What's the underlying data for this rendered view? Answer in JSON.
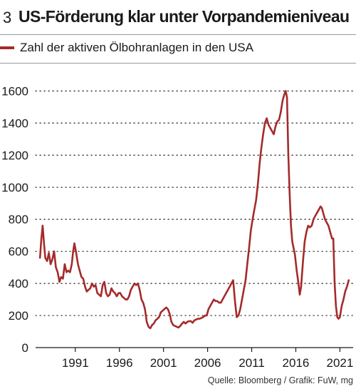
{
  "title": {
    "number": "3",
    "text": "US-Förderung klar unter Vorpandemieniveau"
  },
  "source": "Quelle: Bloomberg / Grafik: FuW, mg",
  "colors": {
    "series": "#a52a2a",
    "text": "#1a1a1a",
    "grid": "#1a1a1a"
  },
  "chart_data": {
    "type": "line",
    "title": "US-Förderung klar unter Vorpandemieniveau",
    "xlabel": "",
    "ylabel": "",
    "xlim": [
      1986.5,
      2022.5
    ],
    "ylim": [
      0,
      1700
    ],
    "x_ticks": [
      1991,
      1996,
      2001,
      2006,
      2011,
      2016,
      2021
    ],
    "y_ticks": [
      0,
      200,
      400,
      600,
      800,
      1000,
      1200,
      1400,
      1600
    ],
    "grid": "dotted horizontal",
    "legend": "top-left",
    "series": [
      {
        "name": "Zahl der aktiven Ölbohranlagen in den USA",
        "x": [
          1987.0,
          1987.15,
          1987.3,
          1987.45,
          1987.6,
          1987.8,
          1988.0,
          1988.2,
          1988.4,
          1988.6,
          1988.8,
          1989.0,
          1989.2,
          1989.4,
          1989.6,
          1989.8,
          1990.0,
          1990.2,
          1990.4,
          1990.6,
          1990.75,
          1990.9,
          1991.1,
          1991.3,
          1991.5,
          1991.7,
          1991.9,
          1992.1,
          1992.3,
          1992.5,
          1992.7,
          1992.9,
          1993.1,
          1993.3,
          1993.5,
          1993.7,
          1993.9,
          1994.1,
          1994.3,
          1994.5,
          1994.7,
          1994.9,
          1995.1,
          1995.3,
          1995.5,
          1995.7,
          1995.9,
          1996.1,
          1996.3,
          1996.5,
          1996.7,
          1996.9,
          1997.1,
          1997.3,
          1997.5,
          1997.7,
          1997.9,
          1998.1,
          1998.3,
          1998.5,
          1998.7,
          1998.9,
          1999.1,
          1999.3,
          1999.5,
          1999.7,
          1999.9,
          2000.1,
          2000.3,
          2000.5,
          2000.7,
          2000.9,
          2001.1,
          2001.3,
          2001.5,
          2001.7,
          2001.9,
          2002.1,
          2002.3,
          2002.5,
          2002.7,
          2002.9,
          2003.1,
          2003.3,
          2003.5,
          2003.7,
          2003.9,
          2004.1,
          2004.3,
          2004.5,
          2004.7,
          2004.9,
          2005.1,
          2005.3,
          2005.5,
          2005.7,
          2005.9,
          2006.1,
          2006.3,
          2006.5,
          2006.7,
          2006.9,
          2007.1,
          2007.3,
          2007.5,
          2007.7,
          2007.9,
          2008.1,
          2008.3,
          2008.5,
          2008.7,
          2008.9,
          2009.1,
          2009.3,
          2009.5,
          2009.7,
          2009.9,
          2010.1,
          2010.3,
          2010.5,
          2010.7,
          2010.9,
          2011.1,
          2011.3,
          2011.5,
          2011.7,
          2011.9,
          2012.1,
          2012.3,
          2012.5,
          2012.7,
          2012.9,
          2013.1,
          2013.3,
          2013.5,
          2013.7,
          2013.9,
          2014.1,
          2014.3,
          2014.5,
          2014.7,
          2014.85,
          2015.0,
          2015.15,
          2015.3,
          2015.45,
          2015.6,
          2015.75,
          2015.9,
          2016.1,
          2016.3,
          2016.45,
          2016.6,
          2016.8,
          2017.0,
          2017.2,
          2017.4,
          2017.6,
          2017.8,
          2018.0,
          2018.2,
          2018.4,
          2018.6,
          2018.8,
          2018.95,
          2019.1,
          2019.3,
          2019.5,
          2019.7,
          2019.9,
          2020.1,
          2020.25,
          2020.4,
          2020.55,
          2020.7,
          2020.85,
          2021.0,
          2021.2,
          2021.4,
          2021.6,
          2021.8,
          2022.0
        ],
        "y": [
          560,
          680,
          760,
          650,
          560,
          540,
          590,
          520,
          550,
          600,
          500,
          470,
          410,
          440,
          430,
          520,
          470,
          480,
          470,
          520,
          600,
          650,
          590,
          520,
          480,
          440,
          430,
          380,
          350,
          360,
          370,
          400,
          380,
          390,
          340,
          330,
          320,
          390,
          410,
          340,
          320,
          330,
          370,
          350,
          340,
          320,
          340,
          340,
          320,
          310,
          300,
          300,
          320,
          360,
          380,
          400,
          390,
          400,
          360,
          300,
          280,
          240,
          160,
          130,
          120,
          140,
          150,
          170,
          180,
          190,
          220,
          230,
          240,
          250,
          240,
          210,
          160,
          140,
          135,
          130,
          125,
          135,
          150,
          160,
          150,
          160,
          165,
          165,
          155,
          170,
          175,
          180,
          180,
          185,
          190,
          200,
          200,
          240,
          260,
          280,
          300,
          290,
          290,
          280,
          280,
          300,
          320,
          340,
          360,
          380,
          400,
          420,
          290,
          190,
          200,
          240,
          300,
          360,
          420,
          520,
          620,
          730,
          800,
          860,
          920,
          1020,
          1150,
          1250,
          1330,
          1400,
          1430,
          1390,
          1370,
          1350,
          1330,
          1380,
          1410,
          1420,
          1470,
          1540,
          1580,
          1600,
          1560,
          1210,
          960,
          760,
          660,
          620,
          580,
          480,
          400,
          330,
          380,
          530,
          660,
          720,
          760,
          750,
          760,
          800,
          820,
          840,
          860,
          880,
          870,
          840,
          800,
          780,
          760,
          720,
          680,
          680,
          400,
          260,
          190,
          180,
          190,
          260,
          300,
          350,
          380,
          420
        ]
      }
    ]
  },
  "legend_label": "Zahl der aktiven Ölbohranlagen in den USA"
}
